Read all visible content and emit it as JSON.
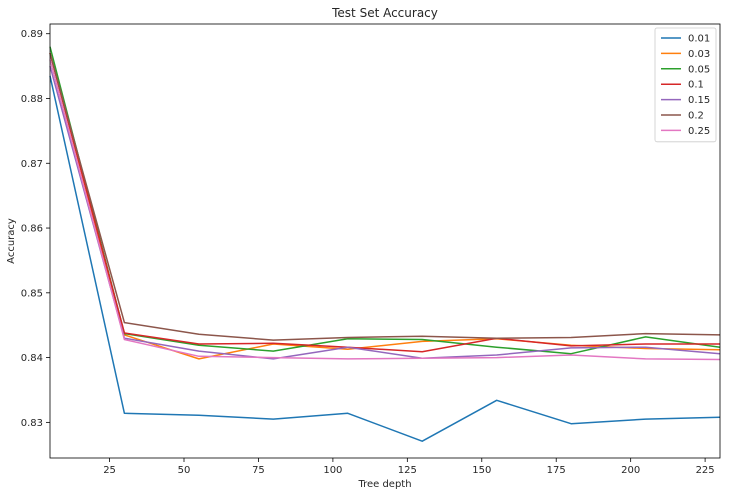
{
  "chart_data": {
    "type": "line",
    "title": "Test Set Accuracy",
    "xlabel": "Tree depth",
    "ylabel": "Accuracy",
    "xlim": [
      5,
      230
    ],
    "ylim": [
      0.8245,
      0.8915
    ],
    "xticks": [
      25,
      50,
      75,
      100,
      125,
      150,
      175,
      200,
      225
    ],
    "yticks": [
      0.83,
      0.84,
      0.85,
      0.86,
      0.87,
      0.88,
      0.89
    ],
    "grid": false,
    "legend_position": "top-right",
    "x": [
      5,
      30,
      55,
      80,
      105,
      130,
      155,
      180,
      205,
      230
    ],
    "series": [
      {
        "name": "0.01",
        "color": "#1f77b4",
        "values": [
          0.8835,
          0.8314,
          0.8311,
          0.8305,
          0.8314,
          0.8271,
          0.8334,
          0.8298,
          0.8305,
          0.8308
        ]
      },
      {
        "name": "0.03",
        "color": "#ff7f0e",
        "values": [
          0.887,
          0.8435,
          0.8398,
          0.8421,
          0.8413,
          0.8425,
          0.8429,
          0.8419,
          0.8414,
          0.8412
        ]
      },
      {
        "name": "0.05",
        "color": "#2ca02c",
        "values": [
          0.888,
          0.8437,
          0.8419,
          0.841,
          0.8429,
          0.8428,
          0.8416,
          0.8406,
          0.8432,
          0.8416
        ]
      },
      {
        "name": "0.1",
        "color": "#d62728",
        "values": [
          0.887,
          0.8438,
          0.8421,
          0.8422,
          0.8416,
          0.8409,
          0.843,
          0.8418,
          0.8421,
          0.8421
        ]
      },
      {
        "name": "0.15",
        "color": "#9467bd",
        "values": [
          0.885,
          0.843,
          0.841,
          0.8398,
          0.8416,
          0.8399,
          0.8404,
          0.8415,
          0.8416,
          0.8406
        ]
      },
      {
        "name": "0.2",
        "color": "#8c564b",
        "values": [
          0.887,
          0.8454,
          0.8436,
          0.8427,
          0.8431,
          0.8433,
          0.843,
          0.8431,
          0.8437,
          0.8435
        ]
      },
      {
        "name": "0.25",
        "color": "#e377c2",
        "values": [
          0.886,
          0.8428,
          0.8402,
          0.84,
          0.8398,
          0.8399,
          0.84,
          0.8404,
          0.8398,
          0.8397
        ]
      }
    ]
  }
}
